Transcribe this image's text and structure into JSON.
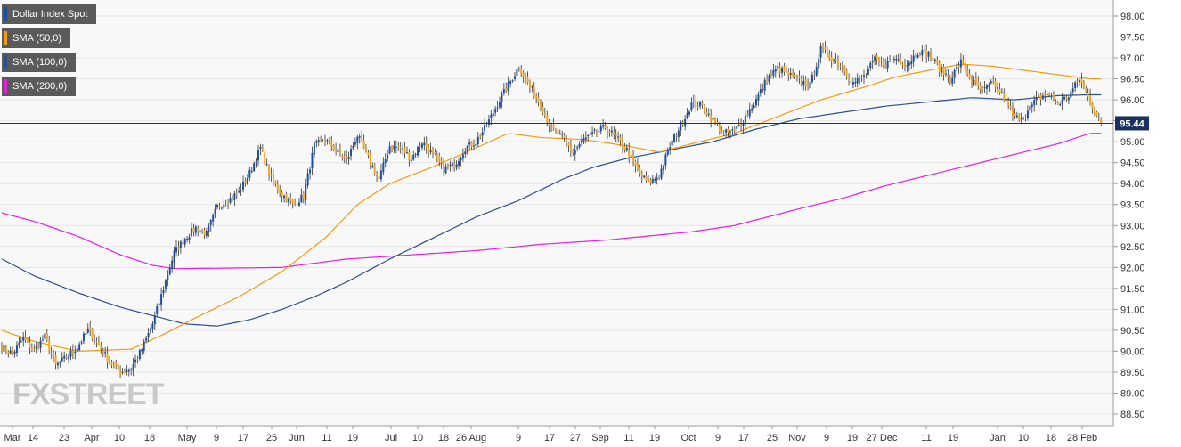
{
  "legend": [
    {
      "label": "Dollar Index Spot",
      "color": "#1f4e99"
    },
    {
      "label": "SMA (50,0)",
      "color": "#f39c12"
    },
    {
      "label": "SMA (100,0)",
      "color": "#2c4f8c"
    },
    {
      "label": "SMA (200,0)",
      "color": "#e61ee6"
    }
  ],
  "watermark": {
    "part1": "FX",
    "part2": "STREET"
  },
  "colors": {
    "up": "#1e4fa3",
    "down": "#f5a31a",
    "sma50": "#f39c12",
    "sma100": "#2c4f8c",
    "sma200": "#e61ee6",
    "grid": "#e6e6e6",
    "plot_bg": "#f8f8f8",
    "price_line": "#1a2f66",
    "price_badge": "#1a2f66"
  },
  "chart_data": {
    "type": "candlestick",
    "title": "Dollar Index Spot",
    "ylim": [
      88.3,
      98.2
    ],
    "y_ticks": [
      "98.00",
      "97.50",
      "97.00",
      "96.50",
      "96.00",
      "95.50",
      "95.00",
      "94.50",
      "94.00",
      "93.50",
      "93.00",
      "92.50",
      "92.00",
      "91.50",
      "91.00",
      "90.50",
      "90.00",
      "89.50",
      "89.00",
      "88.50"
    ],
    "x_ticks": [
      "Mar",
      "14",
      "23",
      "Apr",
      "10",
      "18",
      "May",
      "9",
      "17",
      "25",
      "Jun",
      "11",
      "19",
      "Jul",
      "10",
      "18",
      "26 Aug",
      "9",
      "17",
      "27",
      "Sep",
      "11",
      "19",
      "Oct",
      "9",
      "17",
      "25",
      "Nov",
      "9",
      "19",
      "27 Dec",
      "11",
      "19",
      "Jan",
      "10",
      "18",
      "28 Feb"
    ],
    "current_price": 95.44,
    "grid": true,
    "close_anchors": [
      [
        0,
        90.1
      ],
      [
        5,
        89.95
      ],
      [
        10,
        90.3
      ],
      [
        15,
        90.0
      ],
      [
        20,
        90.35
      ],
      [
        25,
        89.65
      ],
      [
        30,
        89.85
      ],
      [
        35,
        90.1
      ],
      [
        40,
        90.5
      ],
      [
        45,
        90.15
      ],
      [
        50,
        89.75
      ],
      [
        55,
        89.5
      ],
      [
        60,
        89.6
      ],
      [
        65,
        90.05
      ],
      [
        70,
        90.65
      ],
      [
        75,
        91.5
      ],
      [
        80,
        92.35
      ],
      [
        85,
        92.7
      ],
      [
        90,
        92.95
      ],
      [
        95,
        92.8
      ],
      [
        100,
        93.45
      ],
      [
        105,
        93.6
      ],
      [
        110,
        93.8
      ],
      [
        115,
        94.25
      ],
      [
        120,
        94.85
      ],
      [
        125,
        94.1
      ],
      [
        130,
        93.75
      ],
      [
        135,
        93.5
      ],
      [
        140,
        93.7
      ],
      [
        145,
        94.9
      ],
      [
        150,
        95.05
      ],
      [
        155,
        94.8
      ],
      [
        160,
        94.55
      ],
      [
        165,
        95.15
      ],
      [
        170,
        94.6
      ],
      [
        175,
        94.1
      ],
      [
        180,
        94.9
      ],
      [
        185,
        94.85
      ],
      [
        190,
        94.6
      ],
      [
        195,
        95.0
      ],
      [
        200,
        94.7
      ],
      [
        205,
        94.35
      ],
      [
        210,
        94.45
      ],
      [
        215,
        94.85
      ],
      [
        220,
        95.0
      ],
      [
        225,
        95.4
      ],
      [
        230,
        95.9
      ],
      [
        235,
        96.35
      ],
      [
        240,
        96.8
      ],
      [
        245,
        96.3
      ],
      [
        250,
        95.9
      ],
      [
        255,
        95.3
      ],
      [
        260,
        95.1
      ],
      [
        265,
        94.75
      ],
      [
        270,
        95.05
      ],
      [
        275,
        95.2
      ],
      [
        280,
        95.35
      ],
      [
        285,
        95.1
      ],
      [
        290,
        94.8
      ],
      [
        295,
        94.3
      ],
      [
        300,
        94.0
      ],
      [
        305,
        94.2
      ],
      [
        310,
        94.9
      ],
      [
        315,
        95.4
      ],
      [
        320,
        95.9
      ],
      [
        325,
        95.85
      ],
      [
        330,
        95.5
      ],
      [
        335,
        95.2
      ],
      [
        340,
        95.25
      ],
      [
        345,
        95.6
      ],
      [
        350,
        96.0
      ],
      [
        355,
        96.5
      ],
      [
        360,
        96.75
      ],
      [
        365,
        96.6
      ],
      [
        370,
        96.45
      ],
      [
        375,
        96.35
      ],
      [
        380,
        97.2
      ],
      [
        385,
        97.0
      ],
      [
        390,
        96.8
      ],
      [
        395,
        96.4
      ],
      [
        400,
        96.55
      ],
      [
        405,
        96.95
      ],
      [
        410,
        96.85
      ],
      [
        415,
        97.0
      ],
      [
        420,
        96.85
      ],
      [
        425,
        97.15
      ],
      [
        430,
        97.1
      ],
      [
        435,
        96.75
      ],
      [
        440,
        96.5
      ],
      [
        445,
        96.9
      ],
      [
        450,
        96.45
      ],
      [
        455,
        96.2
      ],
      [
        460,
        96.4
      ],
      [
        465,
        96.05
      ],
      [
        470,
        95.55
      ],
      [
        475,
        95.65
      ],
      [
        480,
        96.0
      ],
      [
        485,
        96.15
      ],
      [
        490,
        95.9
      ],
      [
        495,
        96.1
      ],
      [
        500,
        96.5
      ],
      [
        505,
        95.95
      ],
      [
        510,
        95.44
      ]
    ],
    "sma50_anchors": [
      [
        0,
        90.5
      ],
      [
        14,
        90.25
      ],
      [
        35,
        90.0
      ],
      [
        60,
        90.05
      ],
      [
        75,
        90.4
      ],
      [
        90,
        90.8
      ],
      [
        110,
        91.3
      ],
      [
        130,
        91.9
      ],
      [
        150,
        92.7
      ],
      [
        165,
        93.5
      ],
      [
        180,
        94.0
      ],
      [
        200,
        94.4
      ],
      [
        220,
        94.85
      ],
      [
        235,
        95.2
      ],
      [
        250,
        95.1
      ],
      [
        270,
        95.05
      ],
      [
        290,
        94.9
      ],
      [
        305,
        94.75
      ],
      [
        320,
        94.95
      ],
      [
        340,
        95.2
      ],
      [
        360,
        95.6
      ],
      [
        380,
        96.0
      ],
      [
        400,
        96.3
      ],
      [
        415,
        96.55
      ],
      [
        430,
        96.7
      ],
      [
        445,
        96.85
      ],
      [
        460,
        96.8
      ],
      [
        475,
        96.7
      ],
      [
        490,
        96.6
      ],
      [
        505,
        96.5
      ]
    ],
    "sma100_anchors": [
      [
        0,
        92.2
      ],
      [
        15,
        91.8
      ],
      [
        35,
        91.4
      ],
      [
        55,
        91.05
      ],
      [
        70,
        90.85
      ],
      [
        85,
        90.65
      ],
      [
        100,
        90.6
      ],
      [
        115,
        90.75
      ],
      [
        130,
        91.0
      ],
      [
        145,
        91.3
      ],
      [
        160,
        91.65
      ],
      [
        180,
        92.2
      ],
      [
        200,
        92.7
      ],
      [
        220,
        93.2
      ],
      [
        240,
        93.6
      ],
      [
        260,
        94.1
      ],
      [
        275,
        94.4
      ],
      [
        290,
        94.6
      ],
      [
        310,
        94.8
      ],
      [
        330,
        95.0
      ],
      [
        350,
        95.3
      ],
      [
        370,
        95.55
      ],
      [
        390,
        95.7
      ],
      [
        410,
        95.85
      ],
      [
        430,
        95.95
      ],
      [
        450,
        96.05
      ],
      [
        470,
        96.0
      ],
      [
        490,
        96.1
      ],
      [
        505,
        96.12
      ]
    ],
    "sma200_anchors": [
      [
        0,
        93.3
      ],
      [
        15,
        93.1
      ],
      [
        35,
        92.75
      ],
      [
        55,
        92.3
      ],
      [
        70,
        92.05
      ],
      [
        80,
        91.97
      ],
      [
        100,
        91.98
      ],
      [
        130,
        92.0
      ],
      [
        160,
        92.2
      ],
      [
        190,
        92.3
      ],
      [
        220,
        92.4
      ],
      [
        250,
        92.55
      ],
      [
        280,
        92.65
      ],
      [
        300,
        92.75
      ],
      [
        320,
        92.85
      ],
      [
        340,
        93.0
      ],
      [
        355,
        93.2
      ],
      [
        370,
        93.4
      ],
      [
        390,
        93.65
      ],
      [
        410,
        93.95
      ],
      [
        430,
        94.2
      ],
      [
        450,
        94.45
      ],
      [
        470,
        94.7
      ],
      [
        490,
        94.95
      ],
      [
        505,
        95.2
      ]
    ]
  }
}
